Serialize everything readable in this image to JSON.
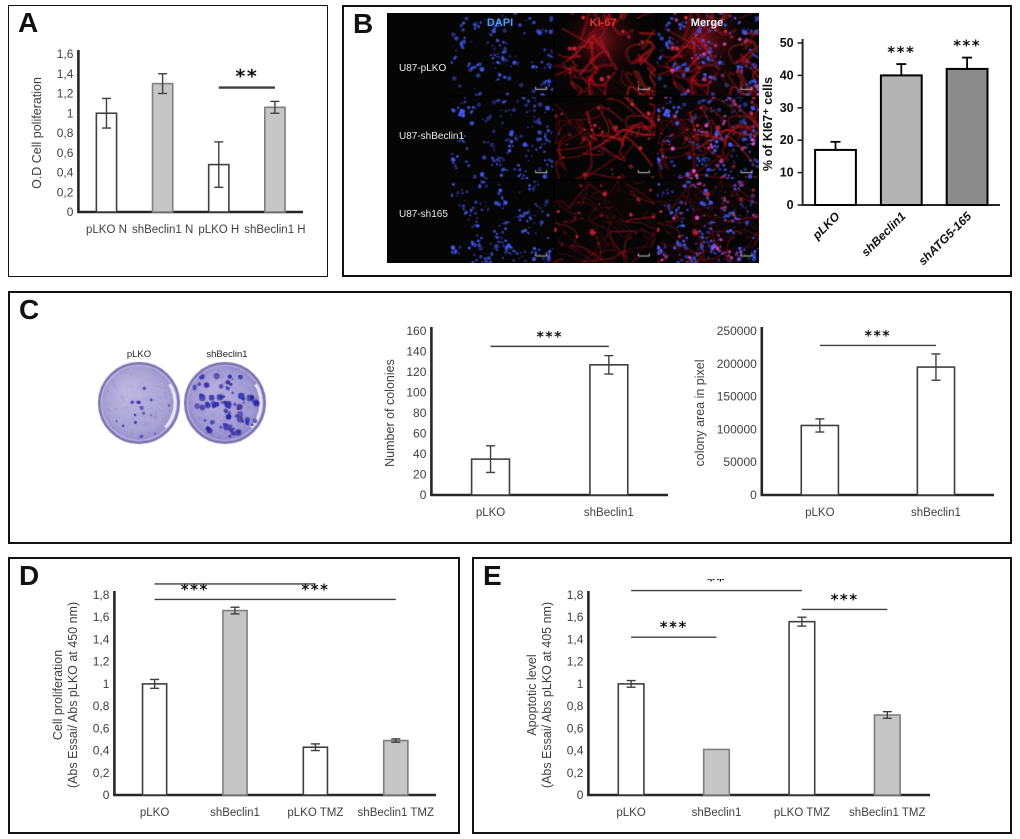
{
  "figure": {
    "panels": [
      {
        "letter": "A"
      },
      {
        "letter": "B"
      },
      {
        "letter": "C"
      },
      {
        "letter": "D"
      },
      {
        "letter": "E"
      }
    ]
  },
  "panelB": {
    "microscopy": {
      "column_headers": [
        {
          "label": "DAPI",
          "color": "#4e9df8"
        },
        {
          "label": "Ki-67",
          "color": "#f03030"
        },
        {
          "label": "Merge",
          "color": "#f5f5f5"
        }
      ],
      "row_labels": [
        "U87-pLKO",
        "U87-shBeclin1",
        "U87-sh165"
      ]
    }
  },
  "panelC": {
    "dishes": [
      {
        "label": "pLKO",
        "colony_density": "low"
      },
      {
        "label": "shBeclin1",
        "colony_density": "high"
      }
    ]
  },
  "colors": {
    "white_bar": "#ffffff",
    "gray_bar": "#c6c6c6",
    "light_gray_bar": "#b3b3b3",
    "dark_gray_bar": "#8c8c8c",
    "axis": "#262626",
    "dapi_blue": "#4e9df8",
    "ki67_red": "#f03030"
  },
  "chart_data": [
    {
      "id": "A",
      "type": "bar",
      "style": "excel",
      "ylabel": "O.D Cell poliferation",
      "categories": [
        "pLKO N",
        "shBeclin1 N",
        "pLKO H",
        "shBeclin1 H"
      ],
      "values": [
        1.0,
        1.3,
        0.48,
        1.06
      ],
      "errors": [
        0.15,
        0.1,
        0.23,
        0.06
      ],
      "bar_fills": [
        "#ffffff",
        "#c6c6c6",
        "#ffffff",
        "#c6c6c6"
      ],
      "bar_strokes": [
        "#3f3f3f",
        "#7f7f7f",
        "#3f3f3f",
        "#7f7f7f"
      ],
      "ylim": [
        0,
        1.6
      ],
      "ytick_values": [
        0,
        0.2,
        0.4,
        0.6,
        0.8,
        1,
        1.2,
        1.4,
        1.6
      ],
      "ytick_labels": [
        "0",
        "0,2",
        "0,4",
        "0,6",
        "0,8",
        "1",
        "1,2",
        "1,4",
        "1,6"
      ],
      "sig_lines": [
        {
          "from": 2,
          "to": 3,
          "y": 1.26,
          "label": "**"
        }
      ],
      "sig_width": 2.4,
      "star_size": 19,
      "bar_frac": 0.36,
      "grid": false
    },
    {
      "id": "B",
      "type": "bar",
      "style": "prism",
      "ylabel": "% of KI67⁺ cells",
      "categories": [
        "pLKO",
        "shBeclin1",
        "shATG5-165"
      ],
      "values": [
        17,
        40,
        42
      ],
      "errors": [
        2.5,
        3.5,
        3.5
      ],
      "bar_fills": [
        "#ffffff",
        "#b3b3b3",
        "#8c8c8c"
      ],
      "bar_strokes": [
        "#000000",
        "#000000",
        "#000000"
      ],
      "ylim": [
        0,
        50
      ],
      "ytick_values": [
        0,
        10,
        20,
        30,
        40,
        50
      ],
      "ytick_labels": [
        "0",
        "10",
        "20",
        "30",
        "40",
        "50"
      ],
      "star_labels": [
        "",
        "***",
        "***"
      ],
      "rotate_x_labels": true,
      "star_size": 15,
      "bar_frac": 0.62,
      "grid": false
    },
    {
      "id": "C1",
      "type": "bar",
      "style": "excel",
      "ylabel": "Number of colonies",
      "categories": [
        "pLKO",
        "shBeclin1"
      ],
      "values": [
        35,
        127
      ],
      "errors": [
        13,
        9
      ],
      "bar_fills": [
        "#ffffff",
        "#ffffff"
      ],
      "bar_strokes": [
        "#3f3f3f",
        "#3f3f3f"
      ],
      "ylim": [
        0,
        160
      ],
      "ytick_values": [
        0,
        20,
        40,
        60,
        80,
        100,
        120,
        140,
        160
      ],
      "ytick_labels": [
        "0",
        "20",
        "40",
        "60",
        "80",
        "100",
        "120",
        "140",
        "160"
      ],
      "sig_lines": [
        {
          "from": 0,
          "to": 1,
          "y": 145,
          "label": "***"
        }
      ],
      "sig_width": 1.4,
      "star_size": 14,
      "bar_frac": 0.32,
      "grid": false
    },
    {
      "id": "C2",
      "type": "bar",
      "style": "excel",
      "ylabel": "colony area in pixel",
      "categories": [
        "pLKO",
        "shBeclin1"
      ],
      "values": [
        106000,
        195000
      ],
      "errors": [
        10000,
        20000
      ],
      "bar_fills": [
        "#ffffff",
        "#ffffff"
      ],
      "bar_strokes": [
        "#3f3f3f",
        "#3f3f3f"
      ],
      "ylim": [
        0,
        250000
      ],
      "ytick_values": [
        0,
        50000,
        100000,
        150000,
        200000,
        250000
      ],
      "ytick_labels": [
        "0",
        "50000",
        "100000",
        "150000",
        "200000",
        "250000"
      ],
      "sig_lines": [
        {
          "from": 0,
          "to": 1,
          "y": 228000,
          "label": "***"
        }
      ],
      "sig_width": 1.4,
      "star_size": 14,
      "bar_frac": 0.32,
      "grid": false
    },
    {
      "id": "D",
      "type": "bar",
      "style": "excel",
      "ylabel": "Cell proliferation",
      "ylabel2": "(Abs Essai/ Abs pLKO at 450 nm)",
      "categories": [
        "pLKO",
        "shBeclin1",
        "pLKO TMZ",
        "shBeclin1 TMZ"
      ],
      "values": [
        1.0,
        1.66,
        0.43,
        0.49
      ],
      "errors": [
        0.04,
        0.03,
        0.03,
        0.015
      ],
      "bar_fills": [
        "#ffffff",
        "#c6c6c6",
        "#ffffff",
        "#c6c6c6"
      ],
      "bar_strokes": [
        "#3f3f3f",
        "#7f7f7f",
        "#3f3f3f",
        "#7f7f7f"
      ],
      "ylim": [
        0,
        1.8
      ],
      "ytick_values": [
        0,
        0.2,
        0.4,
        0.6,
        0.8,
        1,
        1.2,
        1.4,
        1.6,
        1.8
      ],
      "ytick_labels": [
        "0",
        "0,2",
        "0,4",
        "0,6",
        "0,8",
        "1",
        "1,2",
        "1,4",
        "1,6",
        "1,8"
      ],
      "sig_lines": [
        {
          "from": 0,
          "to": 2,
          "y": 1.9,
          "label": "***"
        },
        {
          "from": 0,
          "to": 1,
          "y": 1.76,
          "label": "***"
        },
        {
          "from": 1,
          "to": 3,
          "y": 1.76,
          "label": "***"
        }
      ],
      "sig_width": 1.4,
      "star_size": 15,
      "bar_frac": 0.3,
      "grid": false
    },
    {
      "id": "E",
      "type": "bar",
      "style": "excel",
      "ylabel": "Apoptotic level",
      "ylabel2": "(Abs Essai/ Abs pLKO at 405 nm)",
      "categories": [
        "pLKO",
        "shBeclin1",
        "pLKO TMZ",
        "shBeclin1 TMZ"
      ],
      "values": [
        1.0,
        0.41,
        1.56,
        0.72
      ],
      "errors": [
        0.03,
        0,
        0.04,
        0.03
      ],
      "bar_fills": [
        "#ffffff",
        "#c6c6c6",
        "#ffffff",
        "#c6c6c6"
      ],
      "bar_strokes": [
        "#3f3f3f",
        "#7f7f7f",
        "#3f3f3f",
        "#7f7f7f"
      ],
      "ylim": [
        0,
        1.8
      ],
      "ytick_values": [
        0,
        0.2,
        0.4,
        0.6,
        0.8,
        1,
        1.2,
        1.4,
        1.6,
        1.8
      ],
      "ytick_labels": [
        "0",
        "0,2",
        "0,4",
        "0,6",
        "0,8",
        "1",
        "1,2",
        "1,4",
        "1,6",
        "1,8"
      ],
      "sig_lines": [
        {
          "from": 0,
          "to": 2,
          "y": 1.84,
          "label": "**"
        },
        {
          "from": 0,
          "to": 1,
          "y": 1.42,
          "label": "***"
        },
        {
          "from": 2,
          "to": 3,
          "y": 1.67,
          "label": "***"
        }
      ],
      "sig_width": 1.4,
      "star_size": 15,
      "bar_frac": 0.3,
      "grid": false
    }
  ]
}
